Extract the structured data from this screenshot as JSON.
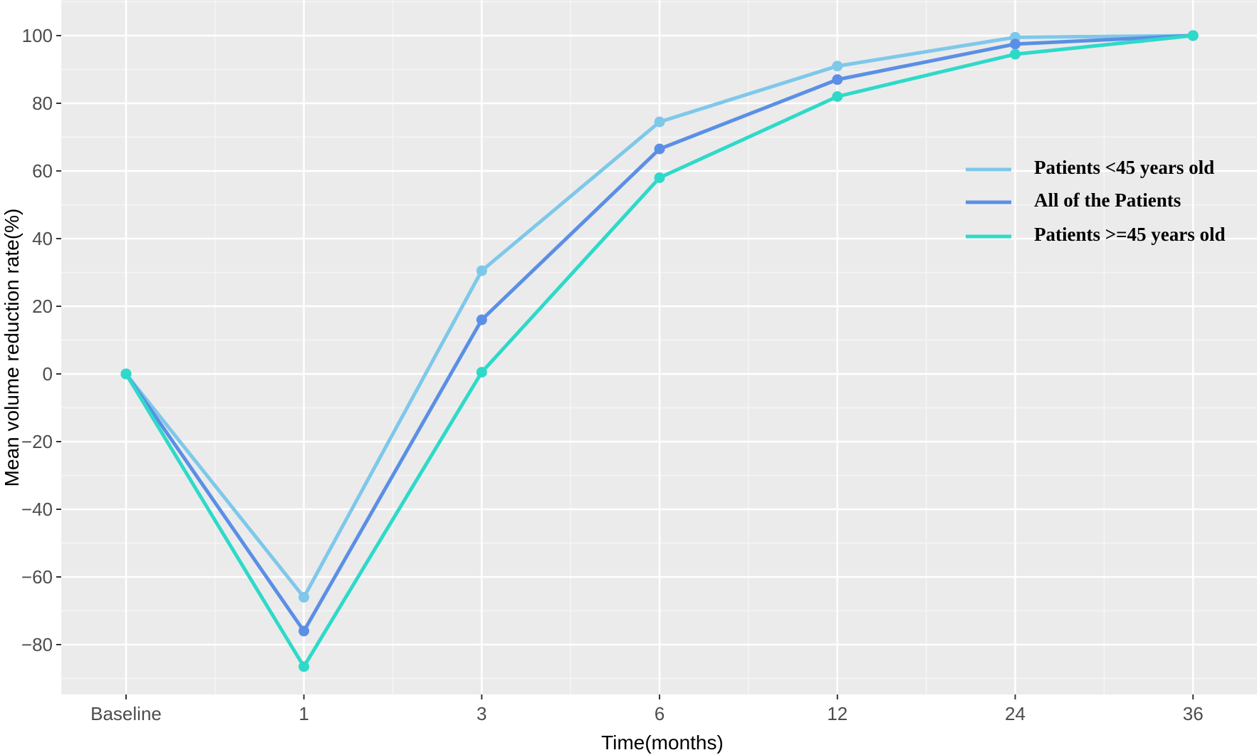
{
  "chart_data": {
    "type": "line",
    "title": "",
    "xlabel": "Time(months)",
    "ylabel": "Mean volume reduction rate(%)",
    "categories": [
      "Baseline",
      "1",
      "3",
      "6",
      "12",
      "24",
      "36"
    ],
    "ylim": [
      -95,
      105
    ],
    "yticks": [
      -80,
      -60,
      -40,
      -20,
      0,
      20,
      40,
      60,
      80,
      100
    ],
    "ytick_labels": [
      "−80",
      "−60",
      "−40",
      "−20",
      "0",
      "20",
      "40",
      "60",
      "80",
      "100"
    ],
    "grid": true,
    "legend_position": "right",
    "series": [
      {
        "name": "Patients <45 years old",
        "color": "#7ec8ea",
        "values": [
          0,
          -66,
          30.5,
          74.5,
          91,
          99.5,
          100
        ]
      },
      {
        "name": "All of the Patients",
        "color": "#5b8fe6",
        "values": [
          0,
          -76,
          16,
          66.5,
          87,
          97.5,
          100
        ]
      },
      {
        "name": "Patients >=45 years old",
        "color": "#2fd9c9",
        "values": [
          0,
          -86.5,
          0.5,
          58,
          82,
          94.5,
          100
        ]
      }
    ]
  }
}
